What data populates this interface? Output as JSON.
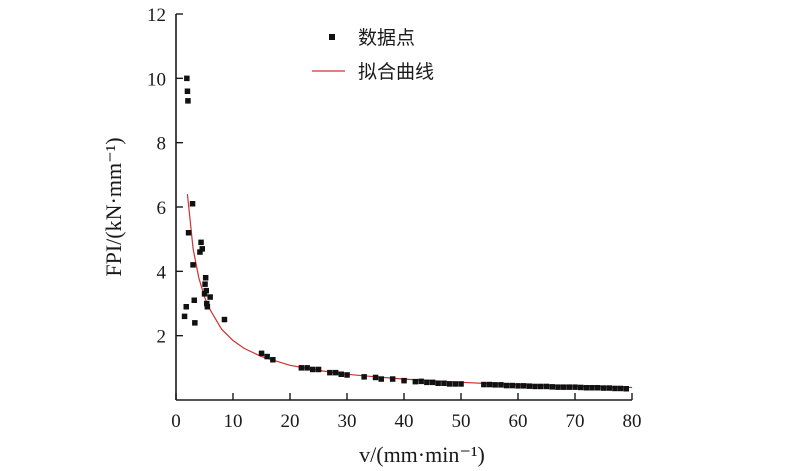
{
  "chart_data": {
    "type": "scatter",
    "title": "",
    "xlabel": "v/(mm·min⁻¹)",
    "ylabel": "FPI/(kN·mm⁻¹)",
    "xlim": [
      0,
      80
    ],
    "ylim": [
      0,
      12
    ],
    "xticks": [
      0,
      10,
      20,
      30,
      40,
      50,
      60,
      70,
      80
    ],
    "yticks": [
      2,
      4,
      6,
      8,
      10,
      12
    ],
    "grid": false,
    "legend_position": "top-center",
    "series": [
      {
        "name": "数据点",
        "kind": "scatter",
        "marker": "square",
        "color": "#111111",
        "points": [
          [
            1.5,
            2.6
          ],
          [
            1.8,
            2.9
          ],
          [
            1.9,
            10.0
          ],
          [
            2.0,
            9.6
          ],
          [
            2.1,
            9.3
          ],
          [
            2.2,
            5.2
          ],
          [
            2.9,
            6.1
          ],
          [
            3.0,
            4.2
          ],
          [
            3.2,
            3.1
          ],
          [
            3.3,
            2.4
          ],
          [
            4.2,
            4.6
          ],
          [
            4.4,
            4.9
          ],
          [
            4.6,
            4.7
          ],
          [
            5.0,
            3.3
          ],
          [
            5.1,
            3.6
          ],
          [
            5.2,
            3.8
          ],
          [
            5.3,
            3.4
          ],
          [
            5.4,
            3.0
          ],
          [
            5.5,
            2.9
          ],
          [
            6.0,
            3.2
          ],
          [
            8.5,
            2.5
          ],
          [
            15.0,
            1.45
          ],
          [
            16.0,
            1.35
          ],
          [
            17.0,
            1.25
          ],
          [
            22.0,
            1.0
          ],
          [
            23.0,
            1.0
          ],
          [
            24.0,
            0.95
          ],
          [
            25.0,
            0.95
          ],
          [
            27.0,
            0.85
          ],
          [
            28.0,
            0.85
          ],
          [
            29.0,
            0.8
          ],
          [
            30.0,
            0.78
          ],
          [
            33.0,
            0.72
          ],
          [
            35.0,
            0.7
          ],
          [
            36.0,
            0.65
          ],
          [
            38.0,
            0.65
          ],
          [
            40.0,
            0.6
          ],
          [
            42.0,
            0.57
          ],
          [
            43.0,
            0.58
          ],
          [
            44.0,
            0.55
          ],
          [
            45.0,
            0.55
          ],
          [
            46.0,
            0.52
          ],
          [
            47.0,
            0.52
          ],
          [
            48.0,
            0.5
          ],
          [
            49.0,
            0.5
          ],
          [
            50.0,
            0.5
          ],
          [
            54.0,
            0.48
          ],
          [
            55.0,
            0.48
          ],
          [
            56.0,
            0.47
          ],
          [
            57.0,
            0.47
          ],
          [
            58.0,
            0.45
          ],
          [
            59.0,
            0.45
          ],
          [
            60.0,
            0.44
          ],
          [
            61.0,
            0.44
          ],
          [
            62.0,
            0.43
          ],
          [
            63.0,
            0.42
          ],
          [
            64.0,
            0.42
          ],
          [
            65.0,
            0.42
          ],
          [
            66.0,
            0.41
          ],
          [
            67.0,
            0.4
          ],
          [
            68.0,
            0.4
          ],
          [
            69.0,
            0.4
          ],
          [
            70.0,
            0.4
          ],
          [
            71.0,
            0.39
          ],
          [
            72.0,
            0.38
          ],
          [
            73.0,
            0.38
          ],
          [
            74.0,
            0.38
          ],
          [
            75.0,
            0.37
          ],
          [
            76.0,
            0.37
          ],
          [
            77.0,
            0.36
          ],
          [
            78.0,
            0.36
          ],
          [
            79.0,
            0.35
          ]
        ]
      },
      {
        "name": "拟合曲线",
        "kind": "line",
        "color": "#d03030",
        "points": [
          [
            2,
            6.4
          ],
          [
            3,
            4.7
          ],
          [
            4,
            3.8
          ],
          [
            5,
            3.2
          ],
          [
            6,
            2.8
          ],
          [
            8,
            2.2
          ],
          [
            10,
            1.85
          ],
          [
            12,
            1.6
          ],
          [
            15,
            1.35
          ],
          [
            20,
            1.08
          ],
          [
            25,
            0.92
          ],
          [
            30,
            0.8
          ],
          [
            35,
            0.72
          ],
          [
            40,
            0.65
          ],
          [
            45,
            0.6
          ],
          [
            50,
            0.55
          ],
          [
            55,
            0.51
          ],
          [
            60,
            0.48
          ],
          [
            65,
            0.45
          ],
          [
            70,
            0.43
          ],
          [
            75,
            0.41
          ],
          [
            80,
            0.39
          ]
        ]
      }
    ]
  }
}
